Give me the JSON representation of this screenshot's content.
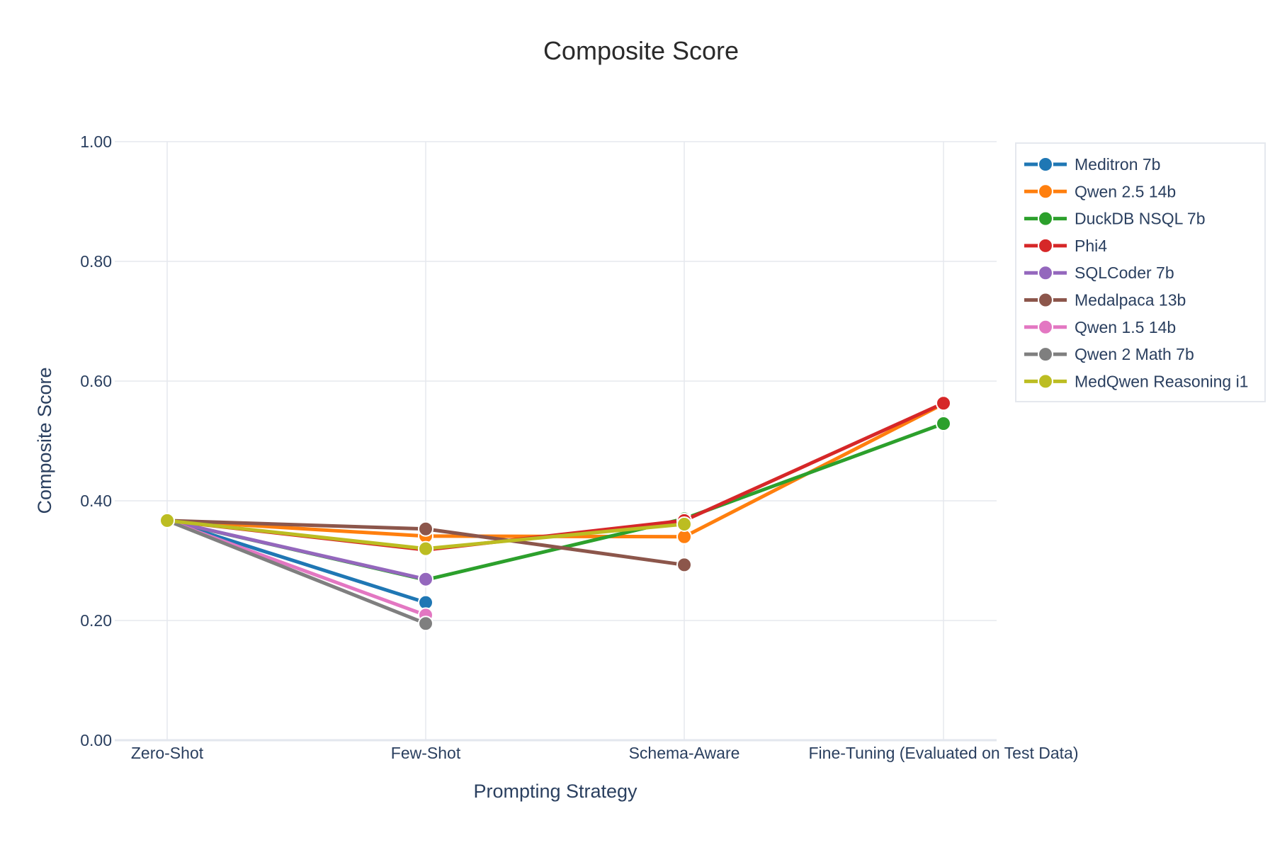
{
  "chart_data": {
    "type": "line",
    "title": "Composite Score",
    "xlabel": "Prompting Strategy",
    "ylabel": "Composite Score",
    "categories": [
      "Zero-Shot",
      "Few-Shot",
      "Schema-Aware",
      "Fine-Tuning (Evaluated on Test Data)"
    ],
    "ylim": [
      0,
      1
    ],
    "yticks": [
      "0.00",
      "0.20",
      "0.40",
      "0.60",
      "0.80",
      "1.00"
    ],
    "grid": true,
    "legend_position": "top-right",
    "series": [
      {
        "name": "Meditron 7b",
        "color": "#1f77b4",
        "values": [
          0.367,
          0.23,
          null,
          null
        ]
      },
      {
        "name": "Qwen 2.5 14b",
        "color": "#ff7f0e",
        "values": [
          0.367,
          0.341,
          0.34,
          0.562
        ]
      },
      {
        "name": "DuckDB NSQL 7b",
        "color": "#2ca02c",
        "values": [
          0.367,
          0.268,
          0.37,
          0.529
        ]
      },
      {
        "name": "Phi4",
        "color": "#d62728",
        "values": [
          0.367,
          0.318,
          0.367,
          0.563
        ]
      },
      {
        "name": "SQLCoder 7b",
        "color": "#9467bd",
        "values": [
          0.367,
          0.269,
          null,
          null
        ]
      },
      {
        "name": "Medalpaca 13b",
        "color": "#8c564b",
        "values": [
          0.367,
          0.353,
          0.293,
          null
        ]
      },
      {
        "name": "Qwen 1.5 14b",
        "color": "#e377c2",
        "values": [
          0.367,
          0.209,
          null,
          null
        ]
      },
      {
        "name": "Qwen 2 Math 7b",
        "color": "#7f7f7f",
        "values": [
          0.367,
          0.195,
          null,
          null
        ]
      },
      {
        "name": "MedQwen Reasoning i1",
        "color": "#bcbd22",
        "values": [
          0.367,
          0.32,
          0.361,
          null
        ]
      }
    ]
  }
}
